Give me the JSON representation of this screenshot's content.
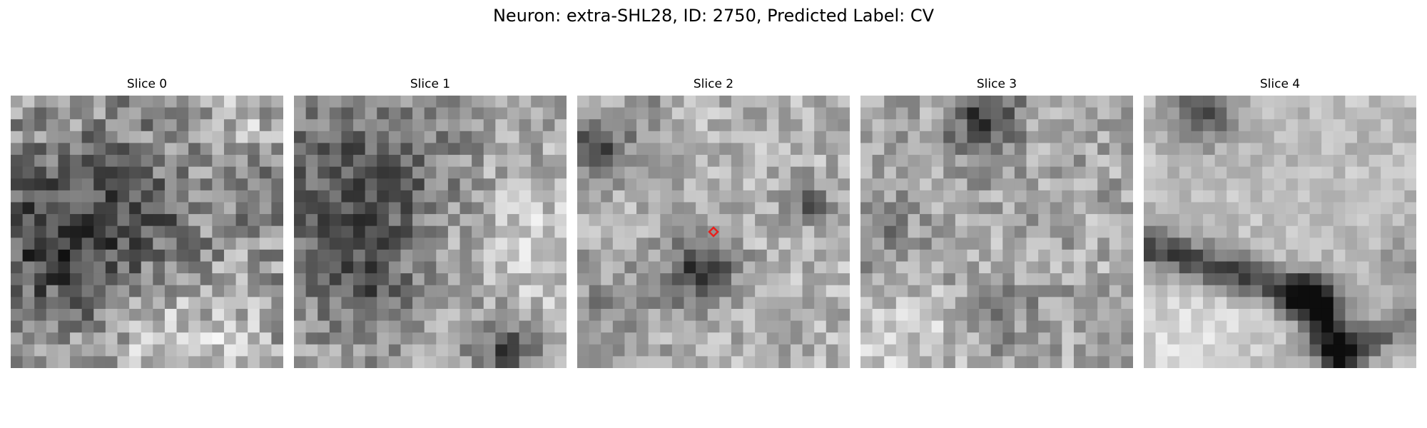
{
  "title": "Neuron: extra-SHL28, ID: 2750, Predicted Label: CV",
  "panels": [
    {
      "label": "Slice 0",
      "texture": "noisy grayscale EM patch, dark mottled region on left, bright bottom"
    },
    {
      "label": "Slice 1",
      "texture": "dark upper-left region, bright right side, dark blob bottom-right"
    },
    {
      "label": "Slice 2",
      "texture": "bright center field with dark blob below marker, dark top-left corner"
    },
    {
      "label": "Slice 3",
      "texture": "dark top-center blob, mid-gray speckled field, bright lower-left"
    },
    {
      "label": "Slice 4",
      "texture": "bright field with dark diagonal band across lower half, dark top-left blob"
    }
  ],
  "marker": {
    "panel": 2,
    "color": "#e8201c",
    "shape": "diamond"
  },
  "colors": {
    "background": "#ffffff",
    "marker": "#e8201c"
  }
}
